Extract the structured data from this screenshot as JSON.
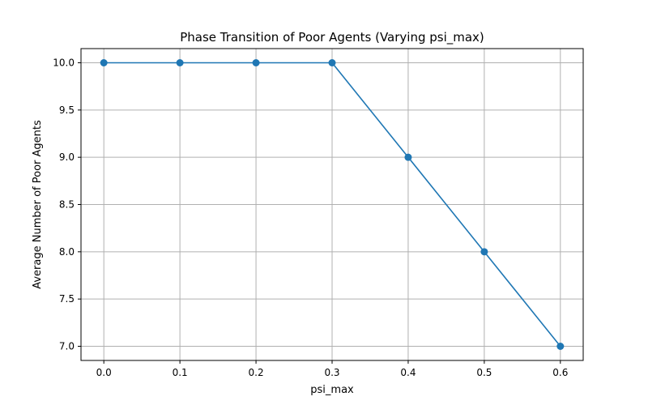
{
  "chart_data": {
    "type": "line",
    "title": "Phase Transition of Poor Agents (Varying psi_max)",
    "xlabel": "psi_max",
    "ylabel": "Average Number of Poor Agents",
    "x": [
      0.0,
      0.1,
      0.2,
      0.3,
      0.4,
      0.5,
      0.6
    ],
    "series": [
      {
        "values": [
          10.0,
          10.0,
          10.0,
          10.0,
          9.0,
          8.0,
          7.0
        ],
        "color": "#1f77b4",
        "marker": "circle"
      }
    ],
    "xlim": [
      -0.03,
      0.63
    ],
    "ylim": [
      6.85,
      10.15
    ],
    "xticks": [
      0.0,
      0.1,
      0.2,
      0.3,
      0.4,
      0.5,
      0.6
    ],
    "xtick_labels": [
      "0.0",
      "0.1",
      "0.2",
      "0.3",
      "0.4",
      "0.5",
      "0.6"
    ],
    "yticks": [
      7.0,
      7.5,
      8.0,
      8.5,
      9.0,
      9.5,
      10.0
    ],
    "ytick_labels": [
      "7.0",
      "7.5",
      "8.0",
      "8.5",
      "9.0",
      "9.5",
      "10.0"
    ],
    "grid": true,
    "grid_color": "#b0b0b0",
    "axis_color": "#000000",
    "legend": "none"
  }
}
